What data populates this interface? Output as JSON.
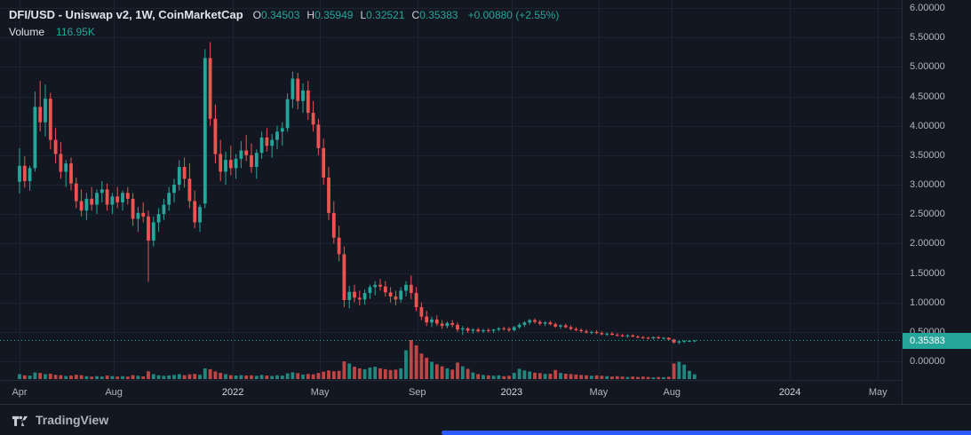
{
  "legend": {
    "title": "DFI/USD - Uniswap v2, 1W, CoinMarketCap",
    "ohlc": [
      {
        "label": "O",
        "value": "0.34503"
      },
      {
        "label": "H",
        "value": "0.35949"
      },
      {
        "label": "L",
        "value": "0.32521"
      },
      {
        "label": "C",
        "value": "0.35383"
      }
    ],
    "change": "+0.00880 (+2.55%)",
    "volume_label": "Volume",
    "volume_value": "116.95K"
  },
  "price_axis": {
    "labels": [
      "6.00000",
      "5.50000",
      "5.00000",
      "4.50000",
      "4.00000",
      "3.50000",
      "3.00000",
      "2.50000",
      "2.00000",
      "1.50000",
      "1.00000",
      "0.50000",
      "0.00000"
    ],
    "current": "0.35383"
  },
  "footer": {
    "brand": "TradingView",
    "logo_icon": "tradingview-logo"
  },
  "chart_data": {
    "type": "candlestick",
    "title": "DFI/USD - Uniswap v2, 1W, CoinMarketCap",
    "interval": "1W",
    "ylim": [
      0,
      6
    ],
    "grid": true,
    "last_price": 0.35383,
    "colors": {
      "up": "#26a69a",
      "down": "#ef5350",
      "grid": "#1e2330",
      "background": "#131722",
      "axis_text": "#b2b5be",
      "scroll_thumb": "#2d5afe"
    },
    "x_ticks": [
      {
        "label": "Apr",
        "i": 0
      },
      {
        "label": "Aug",
        "i": 18.3
      },
      {
        "label": "2022",
        "i": 41.4
      },
      {
        "label": "May",
        "i": 58.3
      },
      {
        "label": "Sep",
        "i": 77.2
      },
      {
        "label": "2023",
        "i": 95.5
      },
      {
        "label": "May",
        "i": 112.4
      },
      {
        "label": "Aug",
        "i": 126.6
      },
      {
        "label": "2024",
        "i": 149.5
      },
      {
        "label": "May",
        "i": 166.6
      }
    ],
    "candles_format": [
      "open",
      "high",
      "low",
      "close",
      "volume_k"
    ],
    "candles": [
      [
        3.05,
        3.62,
        2.85,
        3.32,
        120
      ],
      [
        3.32,
        3.48,
        2.95,
        3.06,
        90
      ],
      [
        3.06,
        3.32,
        2.9,
        3.28,
        85
      ],
      [
        3.28,
        4.58,
        3.22,
        4.32,
        160
      ],
      [
        4.32,
        4.76,
        3.9,
        4.06,
        150
      ],
      [
        4.06,
        4.7,
        3.82,
        4.46,
        120
      ],
      [
        4.46,
        4.56,
        3.6,
        3.76,
        130
      ],
      [
        3.76,
        3.96,
        3.36,
        3.52,
        100
      ],
      [
        3.52,
        3.72,
        3.1,
        3.22,
        95
      ],
      [
        3.22,
        3.42,
        2.96,
        3.36,
        75
      ],
      [
        3.36,
        3.46,
        2.9,
        3.02,
        85
      ],
      [
        3.02,
        3.12,
        2.6,
        2.72,
        105
      ],
      [
        2.72,
        2.92,
        2.46,
        2.56,
        95
      ],
      [
        2.56,
        2.86,
        2.4,
        2.76,
        70
      ],
      [
        2.76,
        2.96,
        2.56,
        2.66,
        60
      ],
      [
        2.66,
        2.92,
        2.5,
        2.86,
        70
      ],
      [
        2.86,
        3.06,
        2.7,
        2.92,
        60
      ],
      [
        2.92,
        3.02,
        2.56,
        2.66,
        85
      ],
      [
        2.66,
        2.86,
        2.5,
        2.8,
        70
      ],
      [
        2.8,
        2.96,
        2.6,
        2.7,
        60
      ],
      [
        2.7,
        2.9,
        2.56,
        2.86,
        70
      ],
      [
        2.86,
        2.96,
        2.66,
        2.76,
        60
      ],
      [
        2.76,
        2.86,
        2.3,
        2.42,
        95
      ],
      [
        2.42,
        2.62,
        2.2,
        2.52,
        80
      ],
      [
        2.52,
        2.7,
        2.36,
        2.46,
        65
      ],
      [
        2.46,
        2.56,
        1.35,
        2.05,
        190
      ],
      [
        2.05,
        2.46,
        1.95,
        2.36,
        120
      ],
      [
        2.36,
        2.6,
        2.2,
        2.5,
        90
      ],
      [
        2.5,
        2.76,
        2.4,
        2.66,
        80
      ],
      [
        2.66,
        2.96,
        2.56,
        2.86,
        90
      ],
      [
        2.86,
        3.1,
        2.7,
        3.0,
        100
      ],
      [
        3.0,
        3.42,
        2.9,
        3.3,
        120
      ],
      [
        3.3,
        3.46,
        2.95,
        3.1,
        95
      ],
      [
        3.1,
        3.36,
        2.6,
        2.72,
        115
      ],
      [
        2.72,
        2.9,
        2.26,
        2.36,
        125
      ],
      [
        2.36,
        2.66,
        2.2,
        2.62,
        105
      ],
      [
        2.68,
        5.3,
        2.6,
        5.15,
        260
      ],
      [
        5.15,
        5.42,
        4.0,
        4.12,
        240
      ],
      [
        4.12,
        4.36,
        3.36,
        3.52,
        185
      ],
      [
        3.52,
        3.76,
        3.06,
        3.22,
        150
      ],
      [
        3.22,
        3.56,
        3.0,
        3.42,
        120
      ],
      [
        3.42,
        3.66,
        3.16,
        3.28,
        95
      ],
      [
        3.28,
        3.52,
        3.1,
        3.44,
        85
      ],
      [
        3.44,
        3.74,
        3.28,
        3.58,
        95
      ],
      [
        3.58,
        3.84,
        3.4,
        3.5,
        85
      ],
      [
        3.5,
        3.7,
        3.2,
        3.3,
        90
      ],
      [
        3.3,
        3.6,
        3.1,
        3.54,
        80
      ],
      [
        3.54,
        3.9,
        3.44,
        3.8,
        100
      ],
      [
        3.8,
        3.96,
        3.56,
        3.66,
        85
      ],
      [
        3.66,
        3.86,
        3.46,
        3.76,
        75
      ],
      [
        3.76,
        4.0,
        3.6,
        3.9,
        90
      ],
      [
        3.9,
        4.06,
        3.66,
        3.96,
        85
      ],
      [
        3.96,
        4.55,
        3.9,
        4.45,
        140
      ],
      [
        4.45,
        4.92,
        4.3,
        4.8,
        165
      ],
      [
        4.8,
        4.9,
        4.28,
        4.42,
        145
      ],
      [
        4.42,
        4.72,
        4.22,
        4.6,
        110
      ],
      [
        4.6,
        4.76,
        4.1,
        4.22,
        125
      ],
      [
        4.22,
        4.42,
        3.9,
        4.02,
        115
      ],
      [
        4.02,
        4.12,
        3.5,
        3.62,
        150
      ],
      [
        3.62,
        3.78,
        3.0,
        3.12,
        180
      ],
      [
        3.12,
        3.3,
        2.4,
        2.52,
        210
      ],
      [
        2.52,
        2.72,
        2.0,
        2.1,
        190
      ],
      [
        2.1,
        2.3,
        1.7,
        1.82,
        200
      ],
      [
        1.82,
        1.95,
        0.92,
        1.04,
        430
      ],
      [
        1.04,
        1.28,
        0.9,
        1.18,
        380
      ],
      [
        1.18,
        1.3,
        1.0,
        1.08,
        300
      ],
      [
        1.08,
        1.2,
        0.95,
        1.05,
        260
      ],
      [
        1.05,
        1.22,
        0.96,
        1.16,
        240
      ],
      [
        1.16,
        1.3,
        1.06,
        1.26,
        280
      ],
      [
        1.26,
        1.36,
        1.12,
        1.3,
        300
      ],
      [
        1.3,
        1.4,
        1.2,
        1.27,
        260
      ],
      [
        1.27,
        1.36,
        1.1,
        1.17,
        240
      ],
      [
        1.17,
        1.26,
        1.0,
        1.1,
        220
      ],
      [
        1.1,
        1.2,
        0.95,
        1.05,
        230
      ],
      [
        1.05,
        1.26,
        1.0,
        1.2,
        260
      ],
      [
        1.2,
        1.36,
        1.1,
        1.3,
        700
      ],
      [
        1.3,
        1.46,
        1.05,
        1.16,
        950
      ],
      [
        1.16,
        1.26,
        0.85,
        0.92,
        820
      ],
      [
        0.92,
        1.0,
        0.7,
        0.76,
        620
      ],
      [
        0.76,
        0.86,
        0.6,
        0.66,
        520
      ],
      [
        0.66,
        0.76,
        0.58,
        0.71,
        420
      ],
      [
        0.71,
        0.78,
        0.6,
        0.64,
        360
      ],
      [
        0.64,
        0.7,
        0.55,
        0.6,
        310
      ],
      [
        0.6,
        0.68,
        0.56,
        0.65,
        260
      ],
      [
        0.65,
        0.7,
        0.58,
        0.62,
        230
      ],
      [
        0.62,
        0.66,
        0.5,
        0.54,
        400
      ],
      [
        0.54,
        0.6,
        0.45,
        0.56,
        310
      ],
      [
        0.56,
        0.58,
        0.48,
        0.52,
        250
      ],
      [
        0.52,
        0.56,
        0.47,
        0.54,
        160
      ],
      [
        0.54,
        0.57,
        0.49,
        0.51,
        120
      ],
      [
        0.51,
        0.55,
        0.48,
        0.53,
        100
      ],
      [
        0.53,
        0.56,
        0.49,
        0.52,
        90
      ],
      [
        0.52,
        0.55,
        0.48,
        0.54,
        80
      ],
      [
        0.54,
        0.58,
        0.51,
        0.56,
        90
      ],
      [
        0.56,
        0.59,
        0.52,
        0.55,
        70
      ],
      [
        0.55,
        0.58,
        0.5,
        0.53,
        80
      ],
      [
        0.53,
        0.6,
        0.51,
        0.58,
        150
      ],
      [
        0.58,
        0.65,
        0.55,
        0.62,
        250
      ],
      [
        0.62,
        0.68,
        0.58,
        0.66,
        210
      ],
      [
        0.66,
        0.72,
        0.62,
        0.7,
        185
      ],
      [
        0.7,
        0.73,
        0.64,
        0.67,
        155
      ],
      [
        0.67,
        0.7,
        0.61,
        0.64,
        145
      ],
      [
        0.64,
        0.68,
        0.6,
        0.66,
        125
      ],
      [
        0.66,
        0.69,
        0.61,
        0.63,
        130
      ],
      [
        0.63,
        0.66,
        0.57,
        0.59,
        220
      ],
      [
        0.59,
        0.63,
        0.55,
        0.61,
        150
      ],
      [
        0.61,
        0.64,
        0.56,
        0.58,
        130
      ],
      [
        0.58,
        0.61,
        0.53,
        0.55,
        120
      ],
      [
        0.55,
        0.58,
        0.51,
        0.53,
        110
      ],
      [
        0.53,
        0.56,
        0.49,
        0.51,
        100
      ],
      [
        0.51,
        0.54,
        0.47,
        0.49,
        90
      ],
      [
        0.49,
        0.52,
        0.46,
        0.5,
        80
      ],
      [
        0.5,
        0.53,
        0.46,
        0.48,
        90
      ],
      [
        0.48,
        0.51,
        0.44,
        0.46,
        80
      ],
      [
        0.46,
        0.49,
        0.43,
        0.47,
        70
      ],
      [
        0.47,
        0.5,
        0.44,
        0.45,
        60
      ],
      [
        0.45,
        0.48,
        0.42,
        0.44,
        70
      ],
      [
        0.44,
        0.47,
        0.41,
        0.43,
        60
      ],
      [
        0.43,
        0.46,
        0.4,
        0.44,
        50
      ],
      [
        0.44,
        0.46,
        0.41,
        0.42,
        60
      ],
      [
        0.42,
        0.44,
        0.39,
        0.41,
        50
      ],
      [
        0.41,
        0.43,
        0.38,
        0.4,
        60
      ],
      [
        0.4,
        0.42,
        0.37,
        0.39,
        50
      ],
      [
        0.39,
        0.42,
        0.37,
        0.41,
        40
      ],
      [
        0.41,
        0.43,
        0.38,
        0.39,
        50
      ],
      [
        0.39,
        0.41,
        0.37,
        0.4,
        45
      ],
      [
        0.4,
        0.41,
        0.36,
        0.37,
        55
      ],
      [
        0.37,
        0.38,
        0.3,
        0.32,
        380
      ],
      [
        0.32,
        0.35,
        0.29,
        0.34,
        420
      ],
      [
        0.34,
        0.36,
        0.31,
        0.345,
        350
      ],
      [
        0.345,
        0.358,
        0.33,
        0.348,
        200
      ],
      [
        0.34503,
        0.35949,
        0.32521,
        0.35383,
        116.95
      ]
    ]
  }
}
